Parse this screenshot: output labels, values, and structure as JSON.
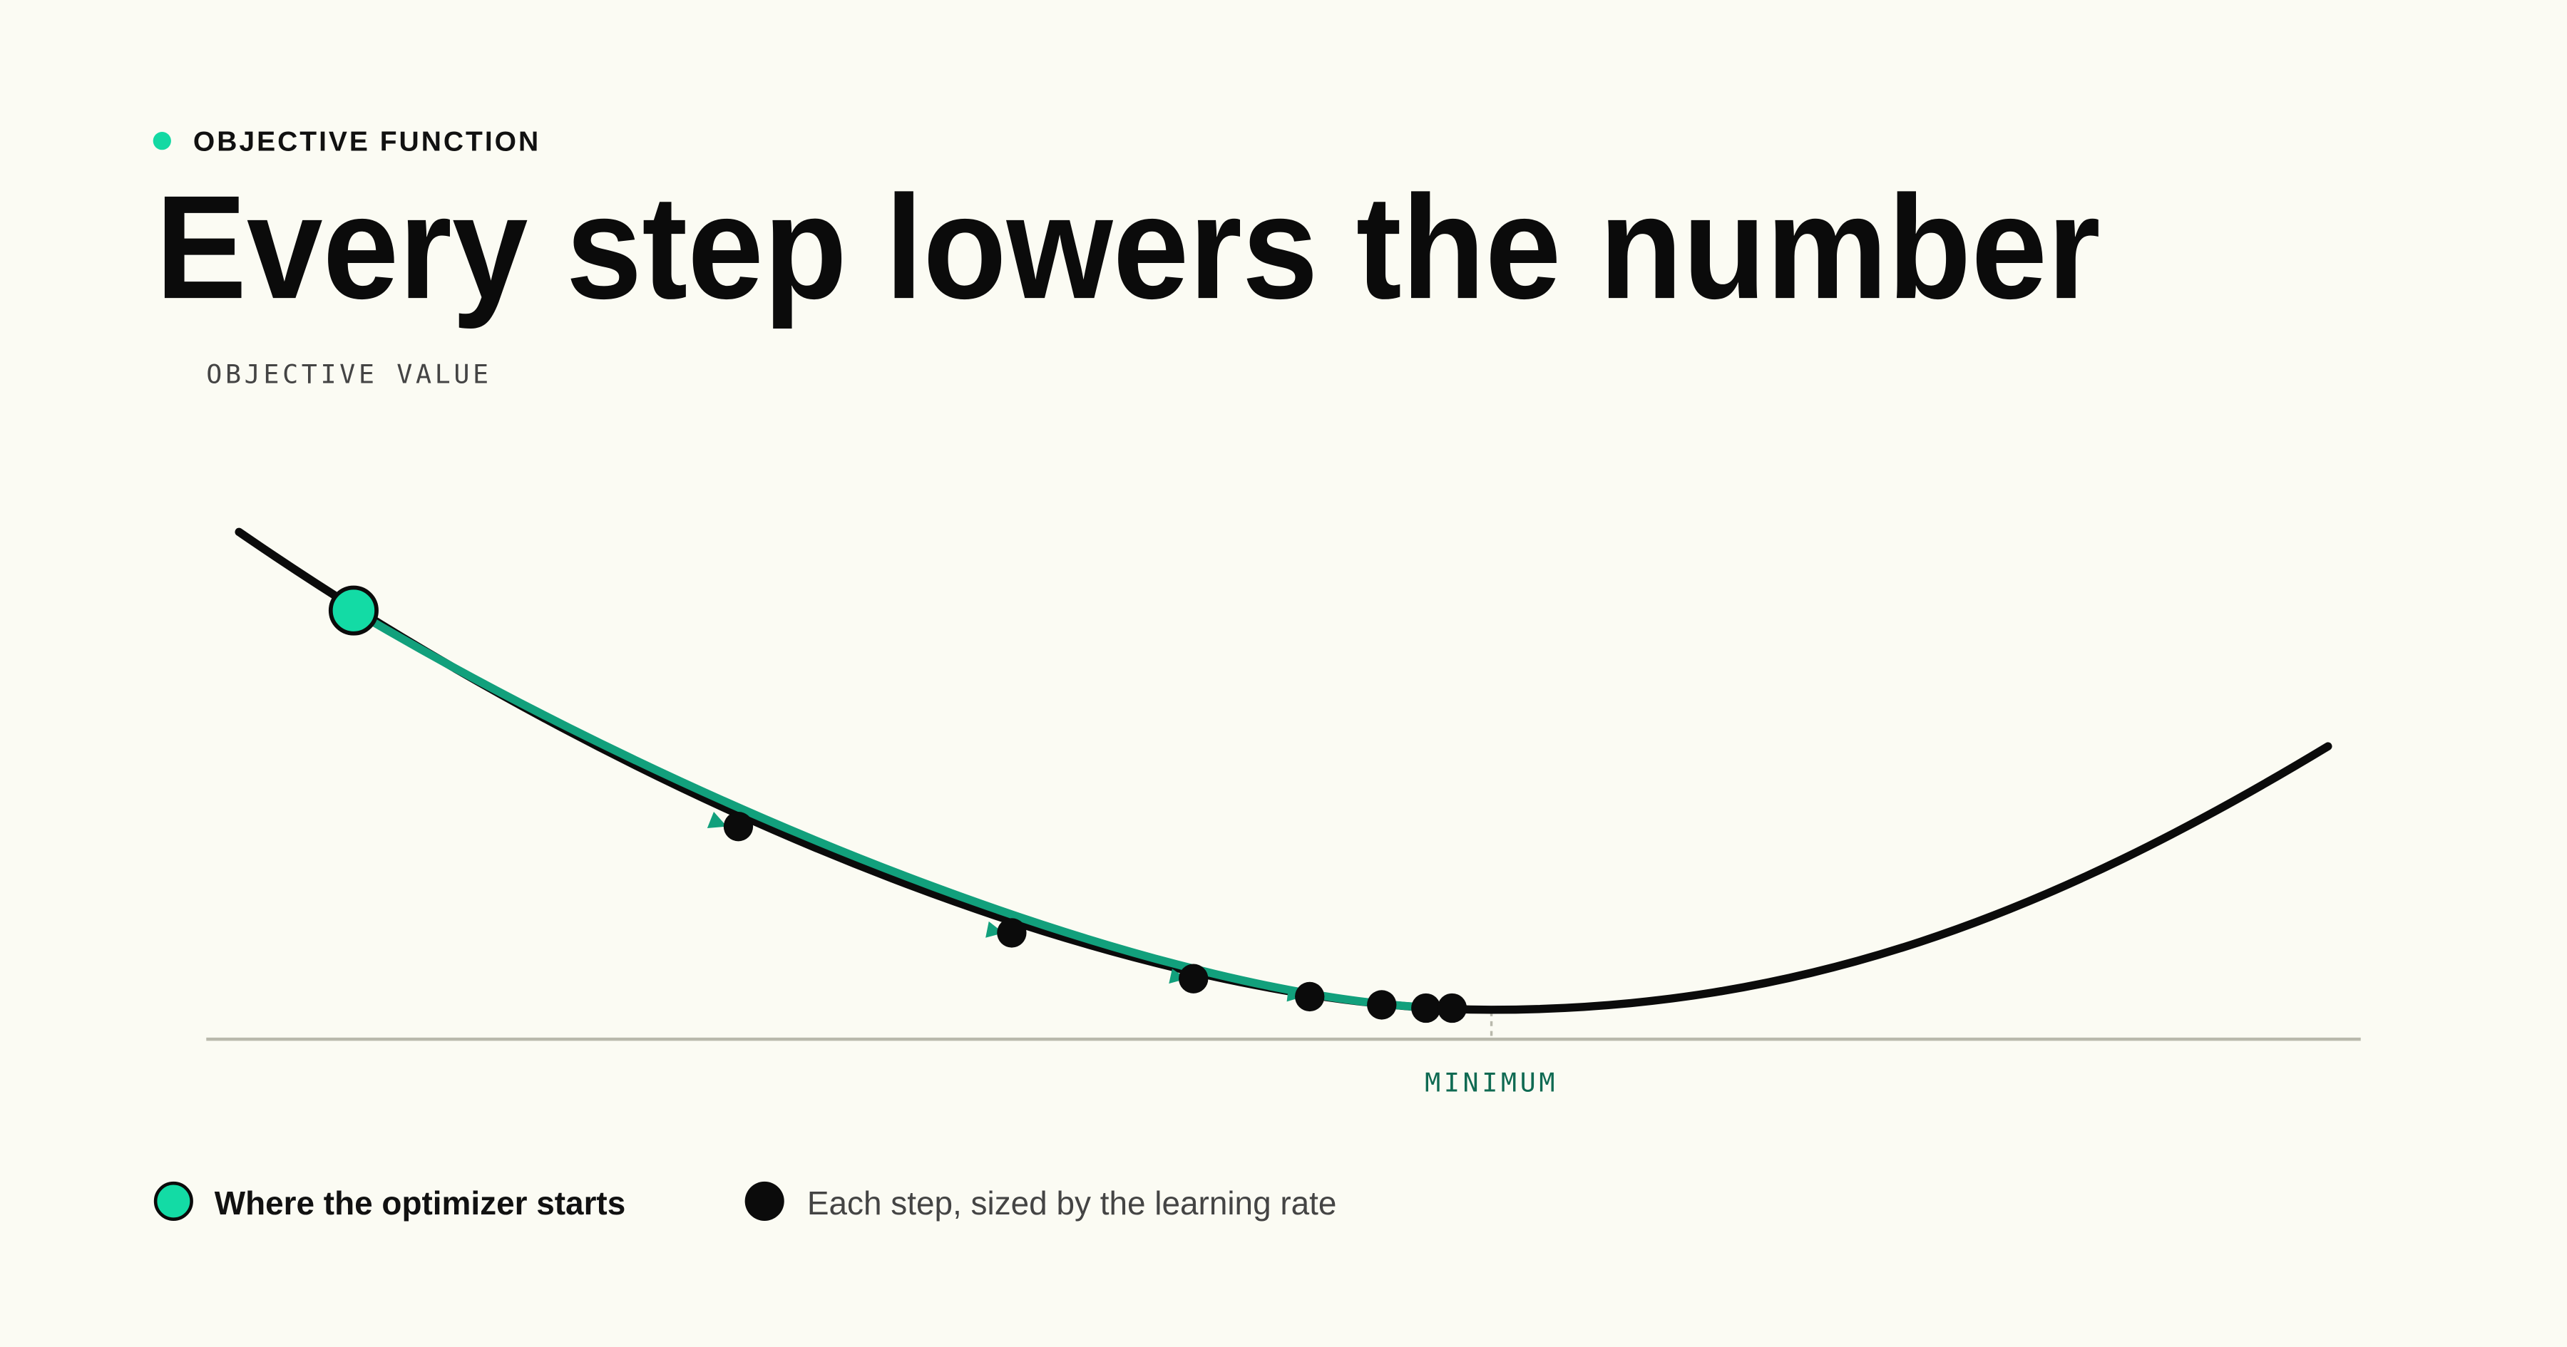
{
  "eyebrow": "OBJECTIVE FUNCTION",
  "title": "Every step lowers the number",
  "axis_label": "OBJECTIVE VALUE",
  "minimum_label": "MINIMUM",
  "legend": [
    {
      "label": "Where the optimizer starts"
    },
    {
      "label": "Each step, sized by the learning rate"
    }
  ]
}
